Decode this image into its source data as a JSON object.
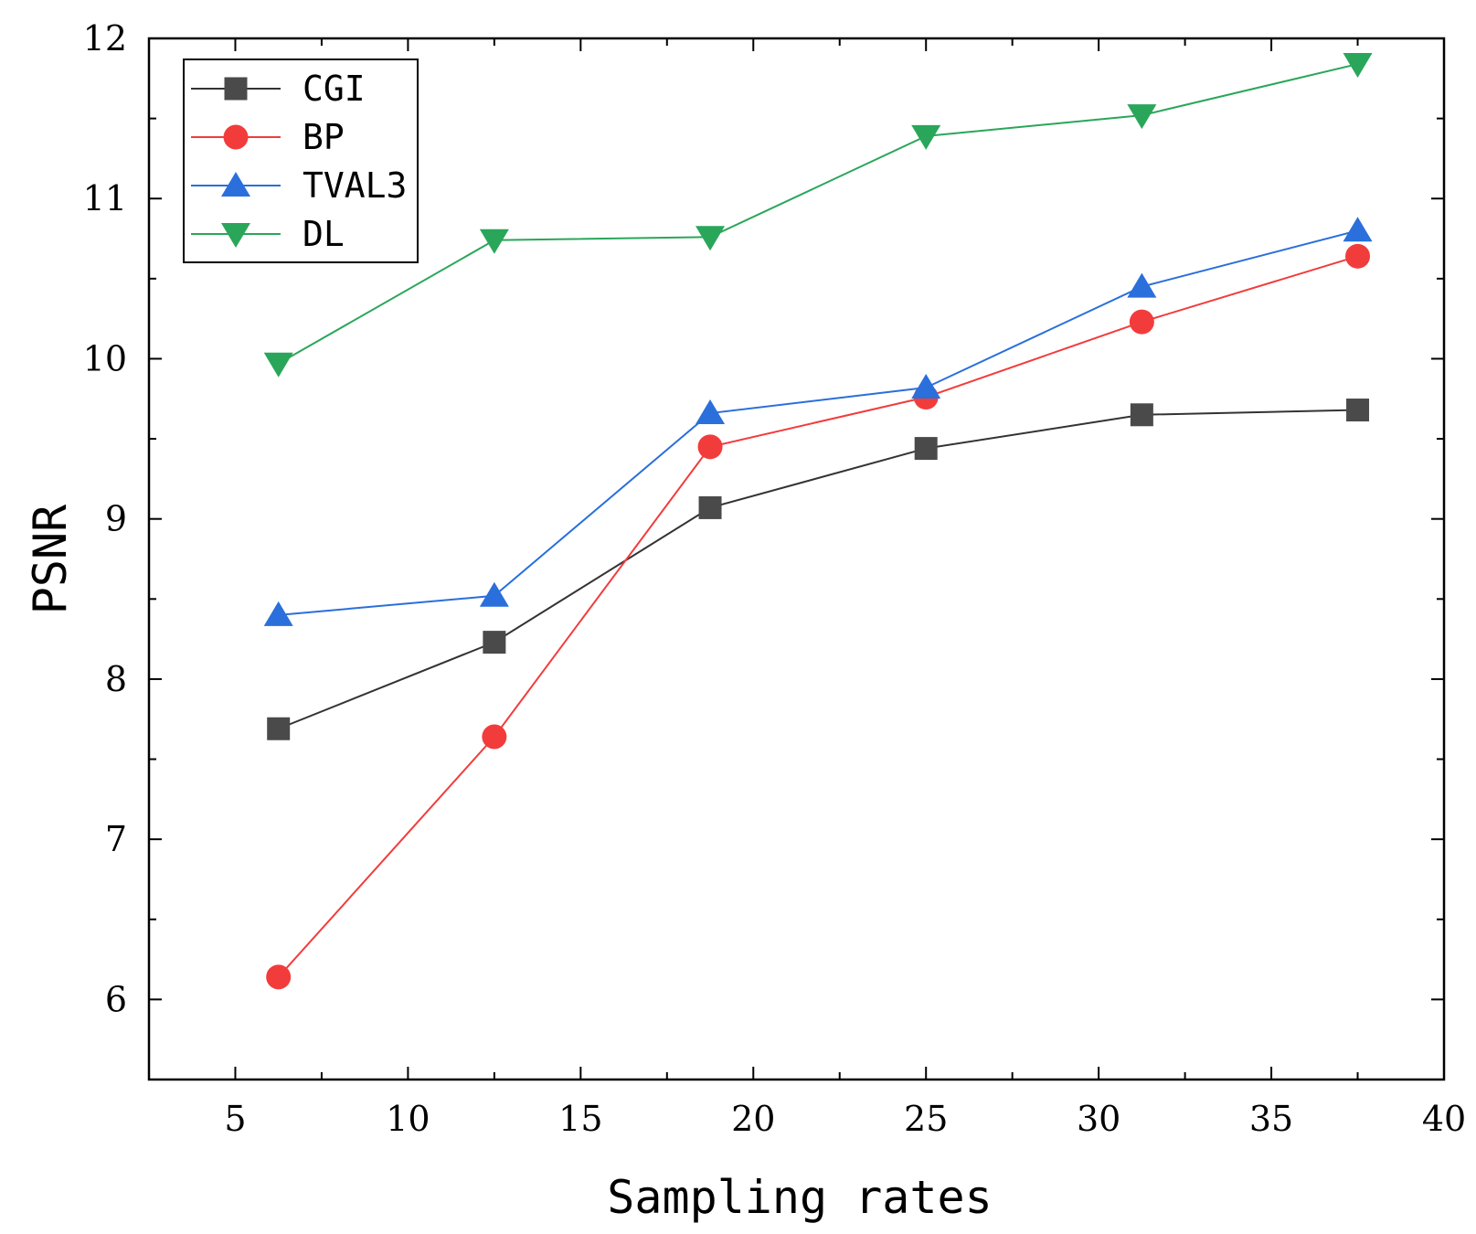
{
  "chart_data": {
    "type": "line",
    "title": "",
    "xlabel": "Sampling rates",
    "ylabel": "PSNR",
    "xlim": [
      2.5,
      40
    ],
    "ylim": [
      5.5,
      12
    ],
    "xticks": [
      5,
      10,
      15,
      20,
      25,
      30,
      35,
      40
    ],
    "yticks": [
      6,
      7,
      8,
      9,
      10,
      11,
      12
    ],
    "grid": false,
    "legend_position": "top-left",
    "x": [
      6.25,
      12.5,
      18.75,
      25,
      31.25,
      37.5
    ],
    "series": [
      {
        "name": "CGI",
        "marker": "square",
        "color": "#4a4a4a",
        "line_color": "#333333",
        "values": [
          7.69,
          8.23,
          9.07,
          9.44,
          9.65,
          9.68
        ]
      },
      {
        "name": "BP",
        "marker": "circle",
        "color": "#f23c3c",
        "line_color": "#f23c3c",
        "values": [
          6.14,
          7.64,
          9.45,
          9.76,
          10.23,
          10.64
        ]
      },
      {
        "name": "TVAL3",
        "marker": "triangle-up",
        "color": "#2a6fdb",
        "line_color": "#2a6fdb",
        "values": [
          8.4,
          8.52,
          9.66,
          9.82,
          10.45,
          10.8
        ]
      },
      {
        "name": "DL",
        "marker": "triangle-down",
        "color": "#2aa65a",
        "line_color": "#2aa65a",
        "values": [
          9.97,
          10.74,
          10.76,
          11.39,
          11.52,
          11.84
        ]
      }
    ]
  }
}
